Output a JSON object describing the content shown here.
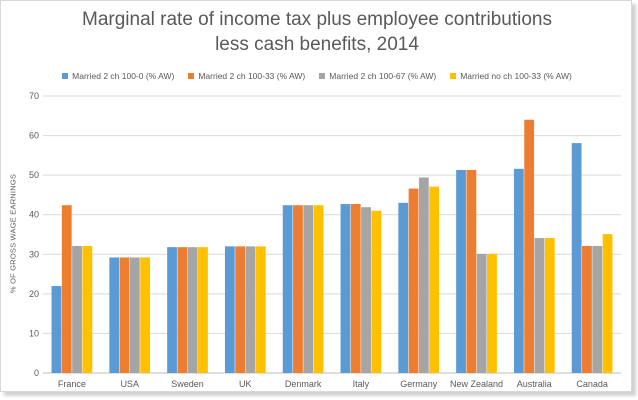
{
  "chart_data": {
    "type": "bar",
    "title_lines": [
      "Marginal rate of income tax plus employee contributions",
      "less cash benefits, 2014"
    ],
    "ylabel": "% OF GROSS WAGE EARNINGS",
    "xlabel": "",
    "ylim": [
      0,
      70
    ],
    "yticks": [
      0,
      10,
      20,
      30,
      40,
      50,
      60,
      70
    ],
    "grid": true,
    "legend_position": "top",
    "categories": [
      "France",
      "USA",
      "Sweden",
      "UK",
      "Denmark",
      "Italy",
      "Germany",
      "New Zealand",
      "Australia",
      "Canada"
    ],
    "series": [
      {
        "name": "Married 2 ch 100-0 (% AW)",
        "color": "#5b9bd5",
        "values": [
          22,
          29.2,
          31.8,
          32,
          42.4,
          42.7,
          43,
          51.3,
          51.6,
          58.1
        ]
      },
      {
        "name": "Married 2 ch 100-33 (% AW)",
        "color": "#ed7d31",
        "values": [
          42.4,
          29.2,
          31.8,
          32,
          42.4,
          42.7,
          46.6,
          51.3,
          64,
          32.1
        ]
      },
      {
        "name": "Married 2 ch 100-67 (% AW)",
        "color": "#a5a5a5",
        "values": [
          32.1,
          29.2,
          31.8,
          32,
          42.4,
          41.9,
          49.4,
          30.1,
          34.1,
          32.1
        ]
      },
      {
        "name": "Married no ch 100-33 (% AW)",
        "color": "#ffc000",
        "values": [
          32.1,
          29.2,
          31.8,
          32,
          42.4,
          41,
          47.1,
          30.1,
          34.1,
          35.1
        ]
      }
    ]
  }
}
